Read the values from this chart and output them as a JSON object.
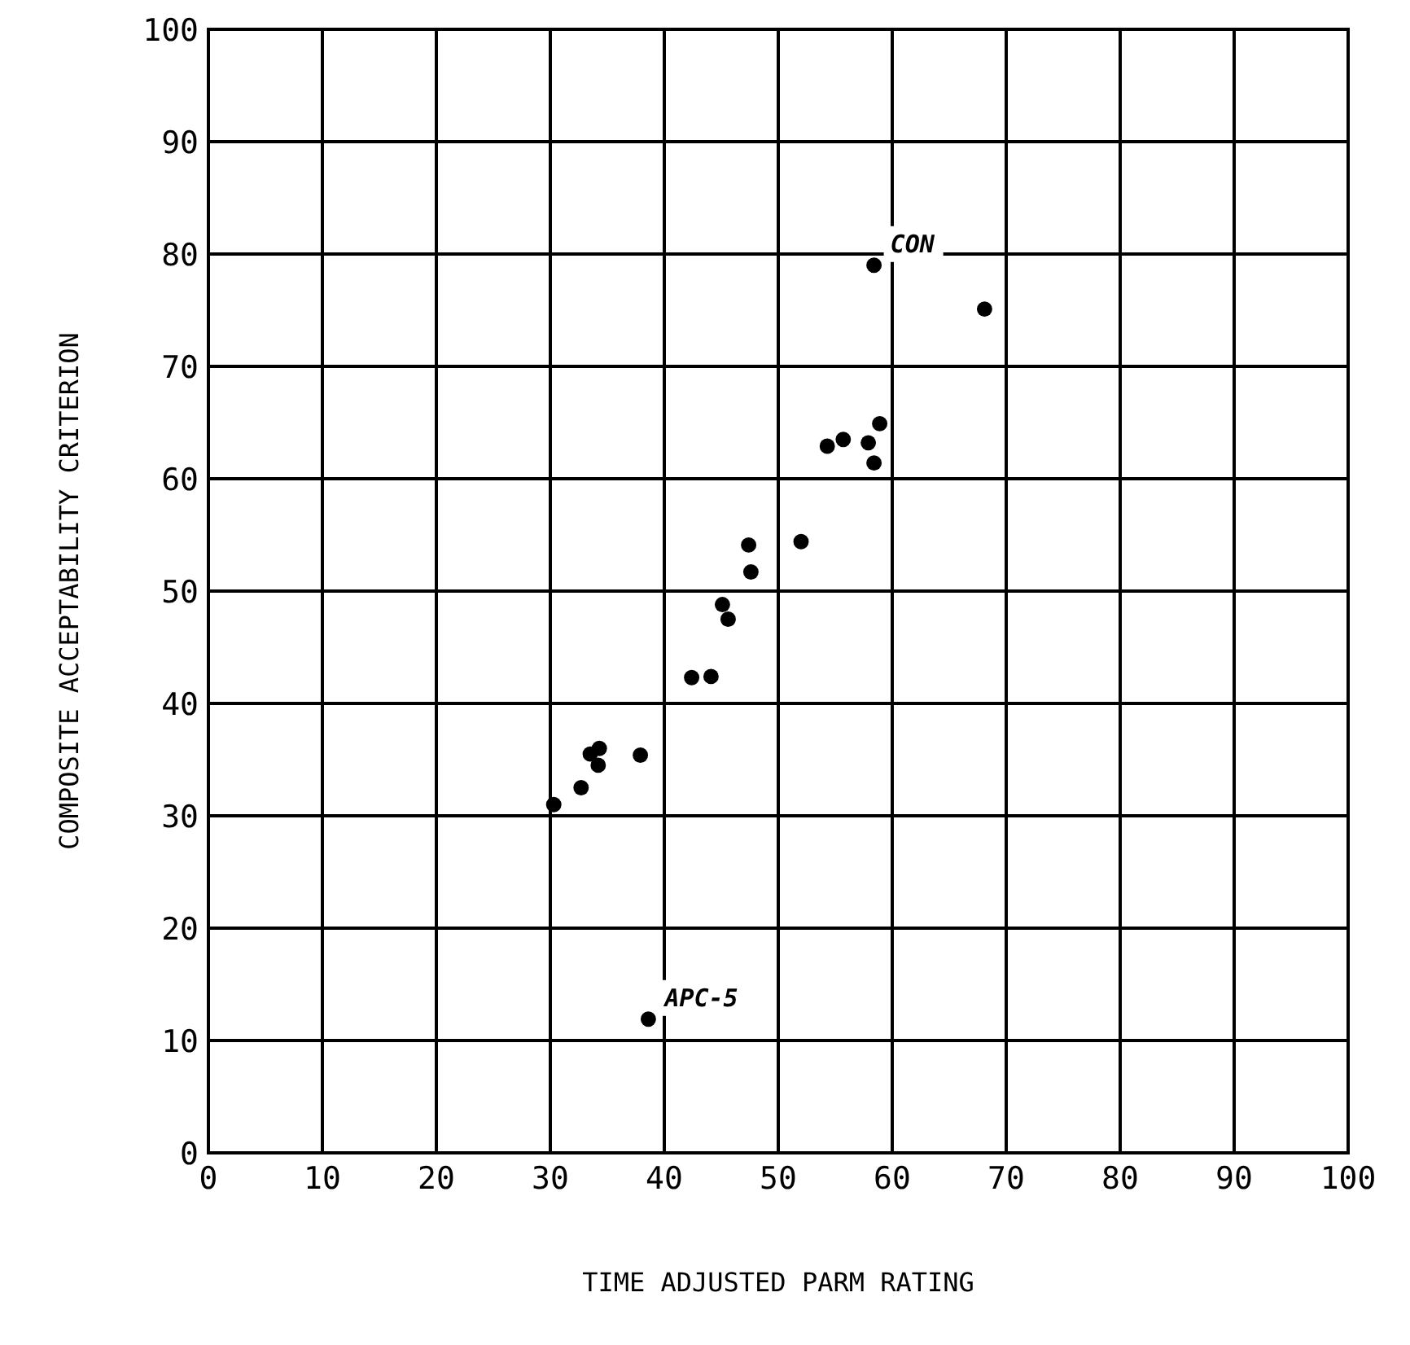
{
  "chart_data": {
    "type": "scatter",
    "xlabel": "TIME ADJUSTED PARM RATING",
    "ylabel": "COMPOSITE ACCEPTABILITY CRITERION",
    "x": [
      30.3,
      32.7,
      33.5,
      34.2,
      34.3,
      37.9,
      42.4,
      44.1,
      45.1,
      45.6,
      47.4,
      47.6,
      52,
      54.3,
      55.7,
      57.9,
      58.9,
      58.4,
      58.4,
      68.1,
      38.6
    ],
    "values": [
      31,
      32.5,
      35.5,
      34.5,
      36,
      35.4,
      42.3,
      42.4,
      48.8,
      47.5,
      54.1,
      51.7,
      54.4,
      62.9,
      63.5,
      63.2,
      64.9,
      61.4,
      79,
      75.1,
      11.9
    ],
    "color": "#000000",
    "marker": "circle",
    "xlim": [
      0,
      100
    ],
    "ylim": [
      0,
      100
    ],
    "xticks": [
      0,
      10,
      20,
      30,
      40,
      50,
      60,
      70,
      80,
      90,
      100
    ],
    "yticks": [
      0,
      10,
      20,
      30,
      40,
      50,
      60,
      70,
      80,
      90,
      100
    ],
    "grid": true,
    "annotations": [
      {
        "text": "CON",
        "x": 58.4,
        "y": 79
      },
      {
        "text": "APC-5",
        "x": 38.6,
        "y": 11.9
      }
    ]
  }
}
